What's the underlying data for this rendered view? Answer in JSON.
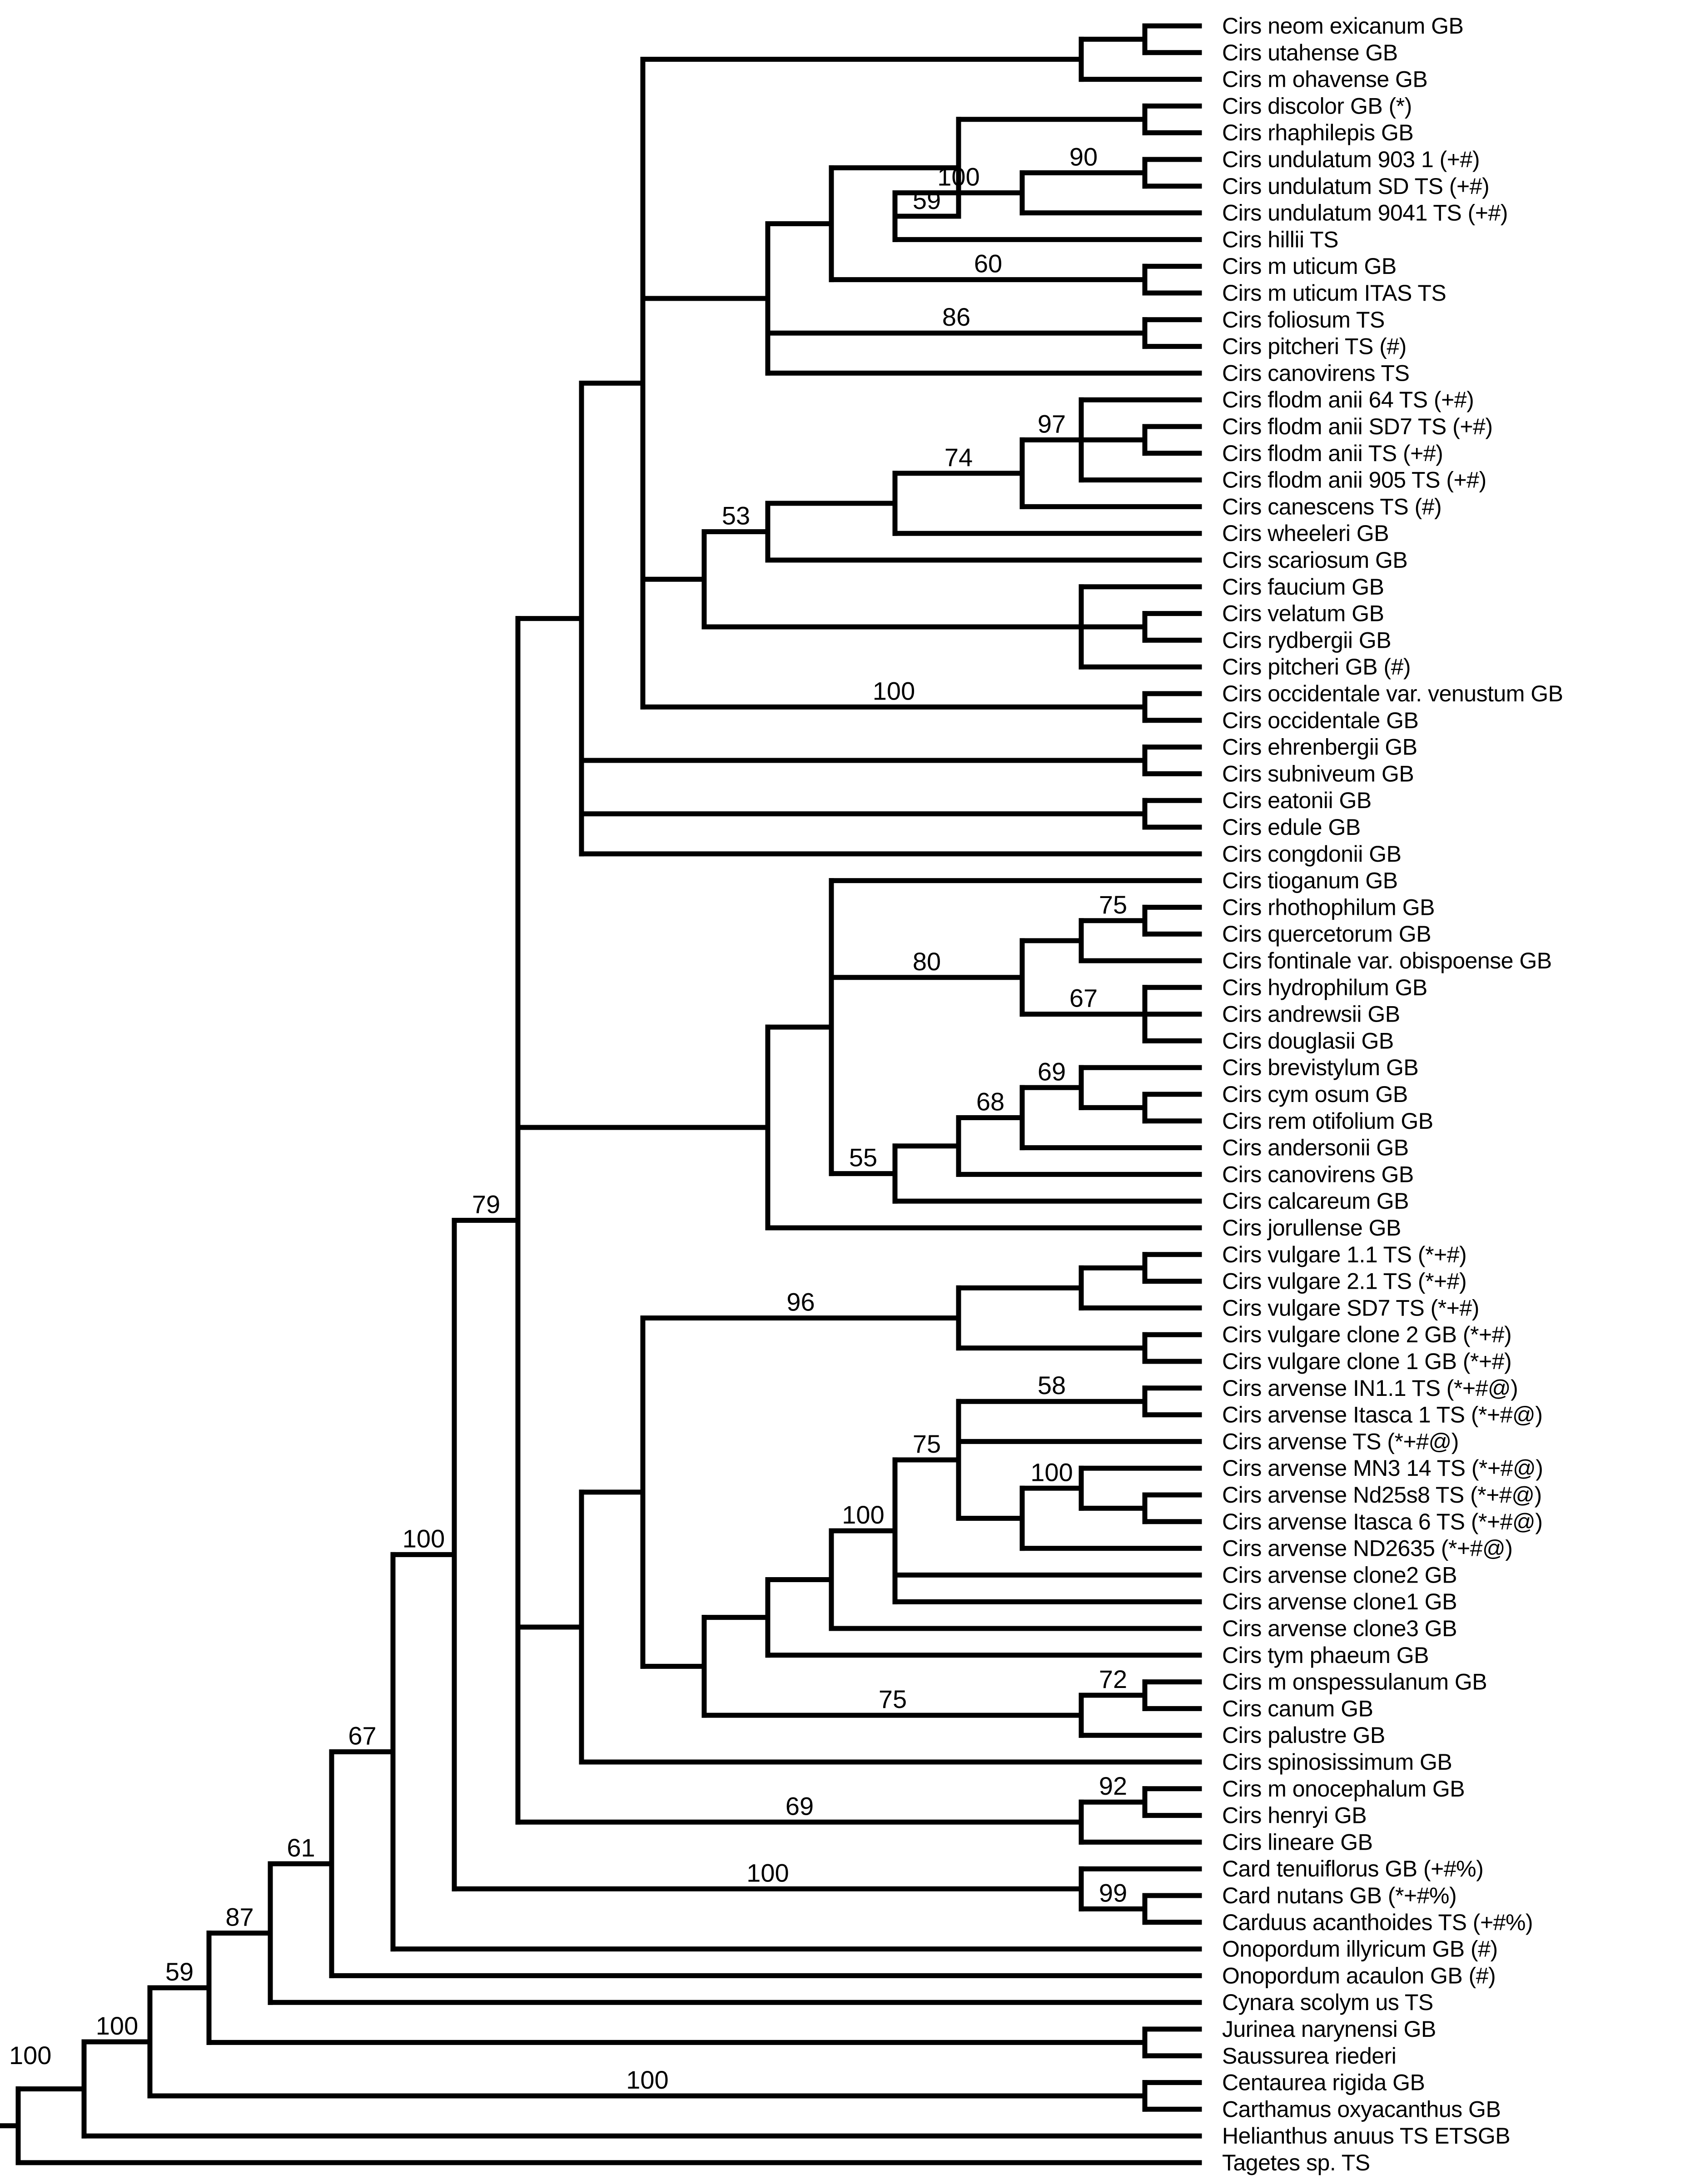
{
  "tree": {
    "taxa": [
      "Cirs neom exicanum GB",
      "Cirs utahense GB",
      "Cirs m ohavense GB",
      "Cirs discolor GB (*)",
      "Cirs rhaphilepis GB",
      "Cirs undulatum 903 1 (+#)",
      "Cirs undulatum SD TS (+#)",
      "Cirs undulatum 9041 TS (+#)",
      "Cirs hillii TS",
      "Cirs m uticum GB",
      "Cirs m uticum ITAS TS",
      "Cirs foliosum TS",
      "Cirs pitcheri TS (#)",
      "Cirs canovirens TS",
      "Cirs flodm anii 64 TS (+#)",
      "Cirs flodm anii SD7 TS (+#)",
      "Cirs flodm anii TS (+#)",
      "Cirs flodm anii 905 TS (+#)",
      "Cirs canescens TS (#)",
      "Cirs wheeleri GB",
      "Cirs scariosum GB",
      "Cirs faucium GB",
      "Cirs velatum GB",
      "Cirs rydbergii GB",
      "Cirs pitcheri GB (#)",
      "Cirs occidentale var. venustum GB",
      "Cirs occidentale GB",
      "Cirs ehrenbergii GB",
      "Cirs subniveum GB",
      "Cirs eatonii GB",
      "Cirs edule GB",
      "Cirs congdonii GB",
      "Cirs tioganum GB",
      "Cirs rhothophilum GB",
      "Cirs quercetorum GB",
      "Cirs fontinale var. obispoense GB",
      "Cirs hydrophilum GB",
      "Cirs andrewsii GB",
      "Cirs douglasii GB",
      "Cirs brevistylum GB",
      "Cirs cym osum GB",
      "Cirs rem otifolium GB",
      "Cirs andersonii GB",
      "Cirs canovirens GB",
      "Cirs calcareum GB",
      "Cirs jorullense GB",
      "Cirs vulgare 1.1 TS (*+#)",
      "Cirs vulgare 2.1 TS (*+#)",
      "Cirs vulgare SD7 TS (*+#)",
      "Cirs vulgare clone 2 GB (*+#)",
      "Cirs vulgare clone 1 GB (*+#)",
      "Cirs arvense IN1.1 TS (*+#@)",
      "Cirs arvense Itasca 1 TS (*+#@)",
      "Cirs arvense TS (*+#@)",
      "Cirs arvense MN3 14 TS (*+#@)",
      "Cirs arvense Nd25s8 TS (*+#@)",
      "Cirs arvense Itasca 6 TS (*+#@)",
      "Cirs arvense ND2635 (*+#@)",
      "Cirs arvense clone2 GB",
      "Cirs arvense clone1 GB",
      "Cirs arvense clone3 GB",
      "Cirs tym phaeum GB",
      "Cirs m onspessulanum GB",
      "Cirs canum GB",
      "Cirs palustre GB",
      "Cirs spinosissimum GB",
      "Cirs m onocephalum GB",
      "Cirs henryi GB",
      "Cirs lineare GB",
      "Card tenuiflorus GB (+#%)",
      "Card nutans GB (*+#%)",
      "Carduus acanthoides TS (+#%)",
      "Onopordum illyricum GB (#)",
      "Onopordum acaulon GB (#)",
      "Cynara scolym us TS",
      "Jurinea narynensi GB",
      "Saussurea riederi",
      "Centaurea rigida GB",
      "Carthamus oxyacanthus GB",
      "Helianthus anuus TS ETSGB",
      "Tagetes sp. TS"
    ],
    "support_values": [
      "90",
      "100",
      "59",
      "60",
      "86",
      "97",
      "74",
      "53",
      "100",
      "75",
      "80",
      "67",
      "69",
      "68",
      "55",
      "96",
      "58",
      "75",
      "100",
      "100",
      "72",
      "75",
      "92",
      "69",
      "99",
      "100",
      "79",
      "100",
      "67",
      "61",
      "87",
      "59",
      "100",
      "100"
    ]
  }
}
